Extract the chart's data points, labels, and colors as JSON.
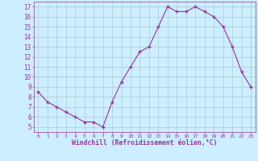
{
  "x": [
    0,
    1,
    2,
    3,
    4,
    5,
    6,
    7,
    8,
    9,
    10,
    11,
    12,
    13,
    14,
    15,
    16,
    17,
    18,
    19,
    20,
    21,
    22,
    23
  ],
  "y": [
    8.5,
    7.5,
    7.0,
    6.5,
    6.0,
    5.5,
    5.5,
    5.0,
    7.5,
    9.5,
    11.0,
    12.5,
    13.0,
    15.0,
    17.0,
    16.5,
    16.5,
    17.0,
    16.5,
    16.0,
    15.0,
    13.0,
    10.5,
    9.0
  ],
  "line_color": "#993399",
  "marker_color": "#993399",
  "bg_color": "#cceeff",
  "grid_color": "#aacccc",
  "xlabel": "Windchill (Refroidissement éolien,°C)",
  "ylabel_ticks": [
    5,
    6,
    7,
    8,
    9,
    10,
    11,
    12,
    13,
    14,
    15,
    16,
    17
  ],
  "xlim": [
    -0.5,
    23.5
  ],
  "ylim": [
    4.5,
    17.5
  ],
  "tick_color": "#993399",
  "label_color": "#993399",
  "font_family": "monospace",
  "xtick_fontsize": 4.5,
  "ytick_fontsize": 5.5,
  "xlabel_fontsize": 5.8
}
